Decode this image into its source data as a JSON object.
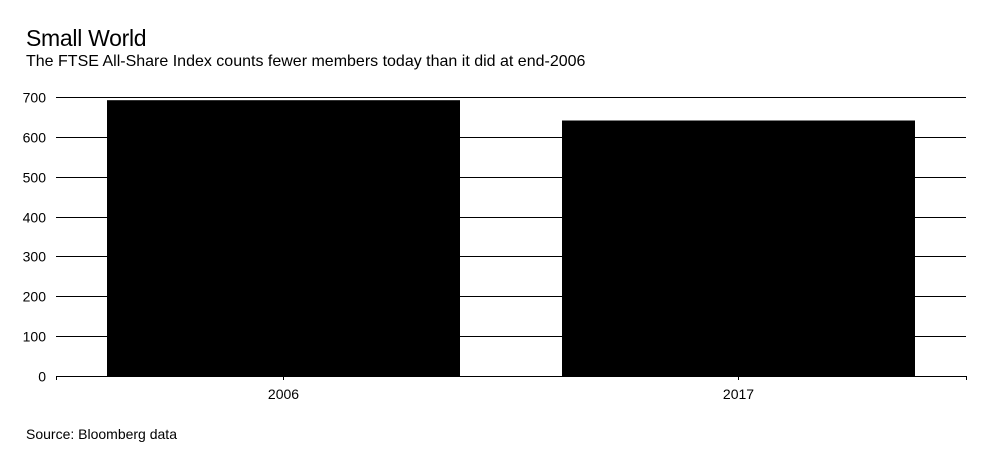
{
  "header": {
    "title": "Small World",
    "subtitle": "The FTSE All-Share Index counts fewer members today than it did at end-2006"
  },
  "footer": {
    "source": "Source: Bloomberg data"
  },
  "colors": {
    "bar": "#000000",
    "grid": "#000000",
    "background": "#ffffff"
  },
  "chart_data": {
    "type": "bar",
    "title": "Small World",
    "subtitle": "The FTSE All-Share Index counts fewer members today than it did at end-2006",
    "xlabel": "",
    "ylabel": "",
    "categories": [
      "2006",
      "2017"
    ],
    "values": [
      692,
      641
    ],
    "ylim": [
      0,
      700
    ],
    "yticks": [
      0,
      100,
      200,
      300,
      400,
      500,
      600,
      700
    ],
    "grid": true,
    "legend": "none"
  }
}
